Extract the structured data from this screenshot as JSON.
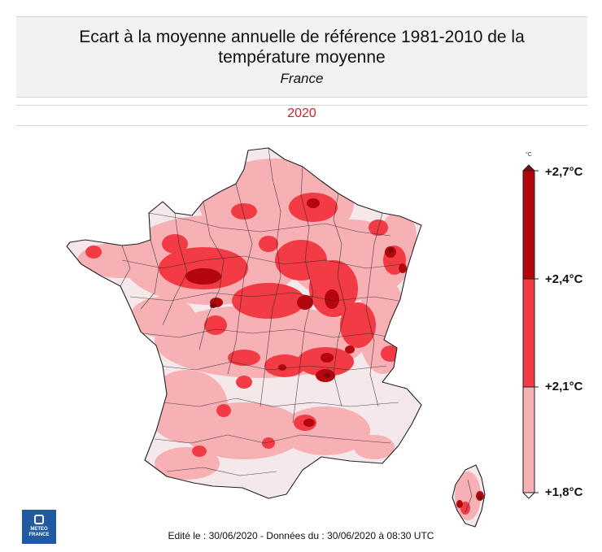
{
  "header": {
    "title_line1": "Ecart à la moyenne annuelle de référence 1981-2010 de la",
    "title_line2": "température moyenne",
    "subtitle": "France"
  },
  "year": "2020",
  "legend": {
    "unit": "°C",
    "classes": [
      {
        "label": "+2,7°C",
        "color": "#7d0a0e"
      },
      {
        "label": "+2,4°C",
        "color": "#b3070d"
      },
      {
        "label": "+2,1°C",
        "color": "#f23b45"
      },
      {
        "label": "+1,8°C",
        "color": "#f7b0b4"
      }
    ],
    "class_bounds": [
      "+1,8°C",
      "+2,1°C",
      "+2,4°C",
      "+2,7°C"
    ]
  },
  "map": {
    "region": "France",
    "outside_color": "#f4e8ea",
    "colors": {
      "low": "#f7b0b4",
      "mid": "#f23b45",
      "high": "#b3070d",
      "max": "#7d0a0e"
    }
  },
  "footer": {
    "text": "Edité le : 30/06/2020 - Données du : 30/06/2020 à 08:30 UTC"
  },
  "logo": {
    "line1": "METEO",
    "line2": "FRANCE"
  }
}
